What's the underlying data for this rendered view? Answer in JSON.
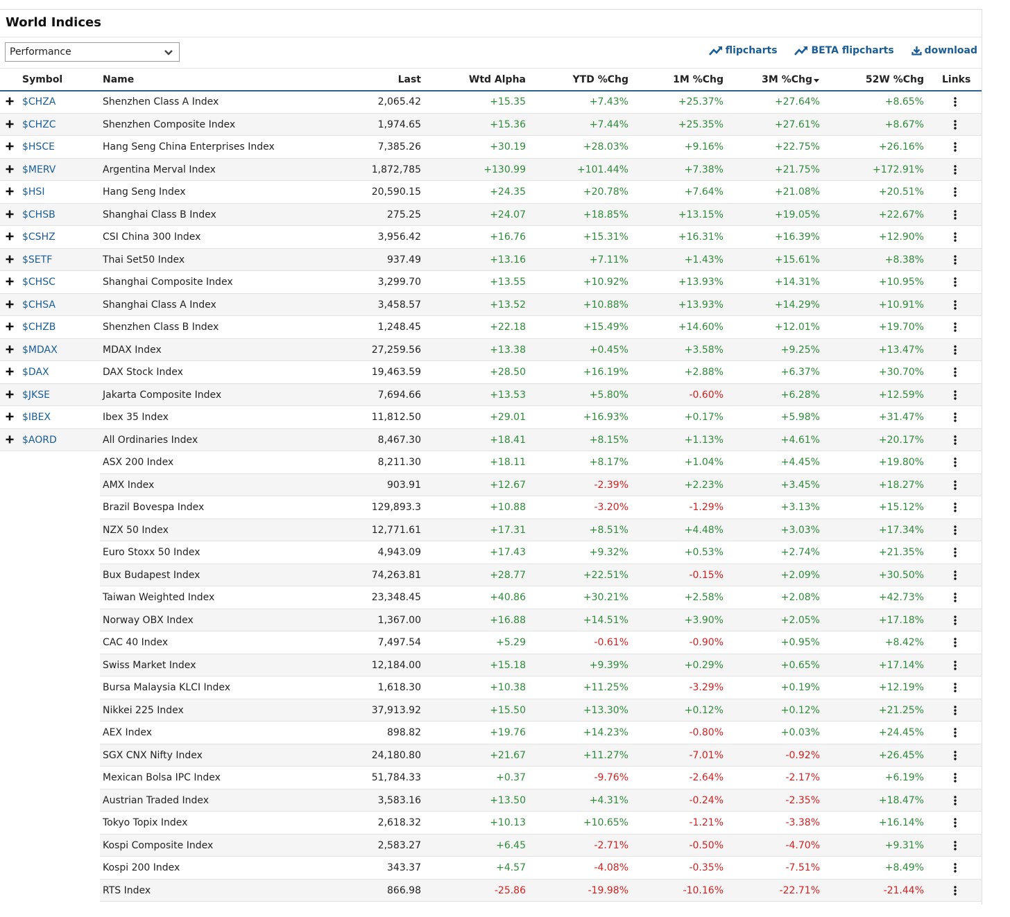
{
  "title": "World Indices",
  "view_select": {
    "value": "Performance"
  },
  "toolbar_links": {
    "flipcharts": "flipcharts",
    "beta_flipcharts": "BETA flipcharts",
    "download": "download"
  },
  "columns": [
    "Symbol",
    "Name",
    "Last",
    "Wtd Alpha",
    "YTD %Chg",
    "1M %Chg",
    "3M %Chg",
    "52W %Chg",
    "Links"
  ],
  "colors": {
    "positive": "#2e8b3a",
    "negative": "#d42020",
    "link": "#1a5d96"
  },
  "rows": [
    {
      "symbol": "$CHZA",
      "name": "Shenzhen Class A Index",
      "last": "2,065.42",
      "wtd": "+15.35",
      "ytd": "+7.43%",
      "m1": "+25.37%",
      "m3": "+27.64%",
      "w52": "+8.65%"
    },
    {
      "symbol": "$CHZC",
      "name": "Shenzhen Composite Index",
      "last": "1,974.65",
      "wtd": "+15.36",
      "ytd": "+7.44%",
      "m1": "+25.35%",
      "m3": "+27.61%",
      "w52": "+8.67%"
    },
    {
      "symbol": "$HSCE",
      "name": "Hang Seng China Enterprises Index",
      "last": "7,385.26",
      "wtd": "+30.19",
      "ytd": "+28.03%",
      "m1": "+9.16%",
      "m3": "+22.75%",
      "w52": "+26.16%"
    },
    {
      "symbol": "$MERV",
      "name": "Argentina Merval Index",
      "last": "1,872,785",
      "wtd": "+130.99",
      "ytd": "+101.44%",
      "m1": "+7.38%",
      "m3": "+21.75%",
      "w52": "+172.91%"
    },
    {
      "symbol": "$HSI",
      "name": "Hang Seng Index",
      "last": "20,590.15",
      "wtd": "+24.35",
      "ytd": "+20.78%",
      "m1": "+7.64%",
      "m3": "+21.08%",
      "w52": "+20.51%"
    },
    {
      "symbol": "$CHSB",
      "name": "Shanghai Class B Index",
      "last": "275.25",
      "wtd": "+24.07",
      "ytd": "+18.85%",
      "m1": "+13.15%",
      "m3": "+19.05%",
      "w52": "+22.67%"
    },
    {
      "symbol": "$CSHZ",
      "name": "CSI China 300 Index",
      "last": "3,956.42",
      "wtd": "+16.76",
      "ytd": "+15.31%",
      "m1": "+16.31%",
      "m3": "+16.39%",
      "w52": "+12.90%"
    },
    {
      "symbol": "$SETF",
      "name": "Thai Set50 Index",
      "last": "937.49",
      "wtd": "+13.16",
      "ytd": "+7.11%",
      "m1": "+1.43%",
      "m3": "+15.61%",
      "w52": "+8.38%"
    },
    {
      "symbol": "$CHSC",
      "name": "Shanghai Composite Index",
      "last": "3,299.70",
      "wtd": "+13.55",
      "ytd": "+10.92%",
      "m1": "+13.93%",
      "m3": "+14.31%",
      "w52": "+10.95%"
    },
    {
      "symbol": "$CHSA",
      "name": "Shanghai Class A Index",
      "last": "3,458.57",
      "wtd": "+13.52",
      "ytd": "+10.88%",
      "m1": "+13.93%",
      "m3": "+14.29%",
      "w52": "+10.91%"
    },
    {
      "symbol": "$CHZB",
      "name": "Shenzhen Class B Index",
      "last": "1,248.45",
      "wtd": "+22.18",
      "ytd": "+15.49%",
      "m1": "+14.60%",
      "m3": "+12.01%",
      "w52": "+19.70%"
    },
    {
      "symbol": "$MDAX",
      "name": "MDAX Index",
      "last": "27,259.56",
      "wtd": "+13.38",
      "ytd": "+0.45%",
      "m1": "+3.58%",
      "m3": "+9.25%",
      "w52": "+13.47%"
    },
    {
      "symbol": "$DAX",
      "name": "DAX Stock Index",
      "last": "19,463.59",
      "wtd": "+28.50",
      "ytd": "+16.19%",
      "m1": "+2.88%",
      "m3": "+6.37%",
      "w52": "+30.70%"
    },
    {
      "symbol": "$JKSE",
      "name": "Jakarta Composite Index",
      "last": "7,694.66",
      "wtd": "+13.53",
      "ytd": "+5.80%",
      "m1": "-0.60%",
      "m3": "+6.28%",
      "w52": "+12.59%"
    },
    {
      "symbol": "$IBEX",
      "name": "Ibex 35 Index",
      "last": "11,812.50",
      "wtd": "+29.01",
      "ytd": "+16.93%",
      "m1": "+0.17%",
      "m3": "+5.98%",
      "w52": "+31.47%"
    },
    {
      "symbol": "$AORD",
      "name": "All Ordinaries Index",
      "last": "8,467.30",
      "wtd": "+18.41",
      "ytd": "+8.15%",
      "m1": "+1.13%",
      "m3": "+4.61%",
      "w52": "+20.17%"
    },
    {
      "symbol": "",
      "name": "ASX 200 Index",
      "last": "8,211.30",
      "wtd": "+18.11",
      "ytd": "+8.17%",
      "m1": "+1.04%",
      "m3": "+4.45%",
      "w52": "+19.80%"
    },
    {
      "symbol": "",
      "name": "AMX Index",
      "last": "903.91",
      "wtd": "+12.67",
      "ytd": "-2.39%",
      "m1": "+2.23%",
      "m3": "+3.45%",
      "w52": "+18.27%"
    },
    {
      "symbol": "",
      "name": "Brazil Bovespa Index",
      "last": "129,893.3",
      "wtd": "+10.88",
      "ytd": "-3.20%",
      "m1": "-1.29%",
      "m3": "+3.13%",
      "w52": "+15.12%"
    },
    {
      "symbol": "",
      "name": "NZX 50 Index",
      "last": "12,771.61",
      "wtd": "+17.31",
      "ytd": "+8.51%",
      "m1": "+4.48%",
      "m3": "+3.03%",
      "w52": "+17.34%"
    },
    {
      "symbol": "",
      "name": "Euro Stoxx 50 Index",
      "last": "4,943.09",
      "wtd": "+17.43",
      "ytd": "+9.32%",
      "m1": "+0.53%",
      "m3": "+2.74%",
      "w52": "+21.35%"
    },
    {
      "symbol": "",
      "name": "Bux Budapest Index",
      "last": "74,263.81",
      "wtd": "+28.77",
      "ytd": "+22.51%",
      "m1": "-0.15%",
      "m3": "+2.09%",
      "w52": "+30.50%"
    },
    {
      "symbol": "",
      "name": "Taiwan Weighted Index",
      "last": "23,348.45",
      "wtd": "+40.86",
      "ytd": "+30.21%",
      "m1": "+2.58%",
      "m3": "+2.08%",
      "w52": "+42.73%"
    },
    {
      "symbol": "",
      "name": "Norway OBX Index",
      "last": "1,367.00",
      "wtd": "+16.88",
      "ytd": "+14.51%",
      "m1": "+3.90%",
      "m3": "+2.05%",
      "w52": "+17.18%"
    },
    {
      "symbol": "",
      "name": "CAC 40 Index",
      "last": "7,497.54",
      "wtd": "+5.29",
      "ytd": "-0.61%",
      "m1": "-0.90%",
      "m3": "+0.95%",
      "w52": "+8.42%"
    },
    {
      "symbol": "",
      "name": "Swiss Market Index",
      "last": "12,184.00",
      "wtd": "+15.18",
      "ytd": "+9.39%",
      "m1": "+0.29%",
      "m3": "+0.65%",
      "w52": "+17.14%"
    },
    {
      "symbol": "",
      "name": "Bursa Malaysia KLCI Index",
      "last": "1,618.30",
      "wtd": "+10.38",
      "ytd": "+11.25%",
      "m1": "-3.29%",
      "m3": "+0.19%",
      "w52": "+12.19%"
    },
    {
      "symbol": "",
      "name": "Nikkei 225 Index",
      "last": "37,913.92",
      "wtd": "+15.50",
      "ytd": "+13.30%",
      "m1": "+0.12%",
      "m3": "+0.12%",
      "w52": "+21.25%"
    },
    {
      "symbol": "",
      "name": "AEX Index",
      "last": "898.82",
      "wtd": "+19.76",
      "ytd": "+14.23%",
      "m1": "-0.80%",
      "m3": "+0.03%",
      "w52": "+24.45%"
    },
    {
      "symbol": "",
      "name": "SGX CNX Nifty Index",
      "last": "24,180.80",
      "wtd": "+21.67",
      "ytd": "+11.27%",
      "m1": "-7.01%",
      "m3": "-0.92%",
      "w52": "+26.45%"
    },
    {
      "symbol": "",
      "name": "Mexican Bolsa IPC Index",
      "last": "51,784.33",
      "wtd": "+0.37",
      "ytd": "-9.76%",
      "m1": "-2.64%",
      "m3": "-2.17%",
      "w52": "+6.19%"
    },
    {
      "symbol": "",
      "name": "Austrian Traded Index",
      "last": "3,583.16",
      "wtd": "+13.50",
      "ytd": "+4.31%",
      "m1": "-0.24%",
      "m3": "-2.35%",
      "w52": "+18.47%"
    },
    {
      "symbol": "",
      "name": "Tokyo Topix Index",
      "last": "2,618.32",
      "wtd": "+10.13",
      "ytd": "+10.65%",
      "m1": "-1.21%",
      "m3": "-3.38%",
      "w52": "+16.14%"
    },
    {
      "symbol": "",
      "name": "Kospi Composite Index",
      "last": "2,583.27",
      "wtd": "+6.45",
      "ytd": "-2.71%",
      "m1": "-0.50%",
      "m3": "-4.70%",
      "w52": "+9.31%"
    },
    {
      "symbol": "",
      "name": "Kospi 200 Index",
      "last": "343.37",
      "wtd": "+4.57",
      "ytd": "-4.08%",
      "m1": "-0.35%",
      "m3": "-7.51%",
      "w52": "+8.49%"
    },
    {
      "symbol": "",
      "name": "RTS Index",
      "last": "866.98",
      "wtd": "-25.86",
      "ytd": "-19.98%",
      "m1": "-10.16%",
      "m3": "-22.71%",
      "w52": "-21.44%"
    }
  ]
}
